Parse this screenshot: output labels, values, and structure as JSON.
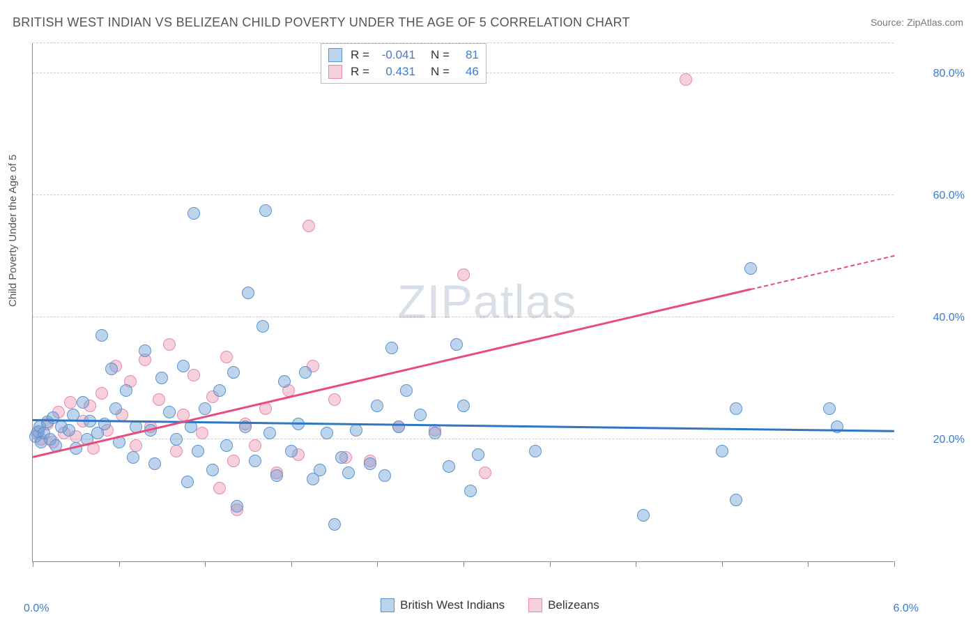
{
  "title": "BRITISH WEST INDIAN VS BELIZEAN CHILD POVERTY UNDER THE AGE OF 5 CORRELATION CHART",
  "source_label": "Source:",
  "source_name": "ZipAtlas.com",
  "ylabel": "Child Poverty Under the Age of 5",
  "watermark_a": "ZIP",
  "watermark_b": "atlas",
  "chart": {
    "type": "scatter",
    "xlim": [
      0.0,
      6.0
    ],
    "ylim": [
      0.0,
      85.0
    ],
    "x_ticks": [
      0.0,
      0.6,
      1.2,
      1.8,
      2.4,
      3.0,
      3.6,
      4.2,
      4.8,
      5.4,
      6.0
    ],
    "x_tick_labels": {
      "0": "0.0%",
      "10": "6.0%"
    },
    "y_gridlines": [
      20.0,
      40.0,
      60.0,
      80.0
    ],
    "y_tick_labels": [
      "20.0%",
      "40.0%",
      "60.0%",
      "80.0%"
    ],
    "marker_radius": 9,
    "marker_opacity": 0.55,
    "background_color": "#ffffff",
    "grid_color": "#cccccc",
    "axis_color": "#888888",
    "tick_label_color": "#3d7cc9"
  },
  "series": [
    {
      "name": "British West Indians",
      "color_fill": "rgba(110,160,215,0.45)",
      "color_stroke": "#5a94cd",
      "swatch_fill": "#bad4ee",
      "swatch_stroke": "#5a94cd",
      "R": "-0.041",
      "N": "81",
      "trend": {
        "x1": 0.0,
        "y1": 23.0,
        "x2": 6.0,
        "y2": 21.2,
        "color": "#2f77c4",
        "width": 2.8
      },
      "points": [
        [
          0.02,
          20.5
        ],
        [
          0.04,
          21.2
        ],
        [
          0.05,
          22.0
        ],
        [
          0.06,
          19.5
        ],
        [
          0.08,
          21.0
        ],
        [
          0.1,
          22.8
        ],
        [
          0.12,
          20.0
        ],
        [
          0.14,
          23.5
        ],
        [
          0.16,
          19.0
        ],
        [
          0.2,
          22.0
        ],
        [
          0.25,
          21.5
        ],
        [
          0.28,
          24.0
        ],
        [
          0.3,
          18.5
        ],
        [
          0.35,
          26.0
        ],
        [
          0.38,
          20.0
        ],
        [
          0.4,
          23.0
        ],
        [
          0.45,
          21.0
        ],
        [
          0.48,
          37.0
        ],
        [
          0.5,
          22.5
        ],
        [
          0.55,
          31.5
        ],
        [
          0.58,
          25.0
        ],
        [
          0.6,
          19.5
        ],
        [
          0.65,
          28.0
        ],
        [
          0.7,
          17.0
        ],
        [
          0.72,
          22.0
        ],
        [
          0.78,
          34.5
        ],
        [
          0.82,
          21.5
        ],
        [
          0.85,
          16.0
        ],
        [
          0.9,
          30.0
        ],
        [
          0.95,
          24.5
        ],
        [
          1.0,
          20.0
        ],
        [
          1.05,
          32.0
        ],
        [
          1.08,
          13.0
        ],
        [
          1.1,
          22.0
        ],
        [
          1.12,
          57.0
        ],
        [
          1.15,
          18.0
        ],
        [
          1.2,
          25.0
        ],
        [
          1.25,
          15.0
        ],
        [
          1.3,
          28.0
        ],
        [
          1.35,
          19.0
        ],
        [
          1.4,
          31.0
        ],
        [
          1.42,
          9.0
        ],
        [
          1.48,
          22.0
        ],
        [
          1.5,
          44.0
        ],
        [
          1.55,
          16.5
        ],
        [
          1.6,
          38.5
        ],
        [
          1.62,
          57.5
        ],
        [
          1.65,
          21.0
        ],
        [
          1.7,
          14.0
        ],
        [
          1.75,
          29.5
        ],
        [
          1.8,
          18.0
        ],
        [
          1.85,
          22.5
        ],
        [
          1.9,
          31.0
        ],
        [
          1.95,
          13.5
        ],
        [
          2.0,
          15.0
        ],
        [
          2.05,
          21.0
        ],
        [
          2.1,
          6.0
        ],
        [
          2.15,
          17.0
        ],
        [
          2.2,
          14.5
        ],
        [
          2.25,
          21.5
        ],
        [
          2.35,
          16.0
        ],
        [
          2.4,
          25.5
        ],
        [
          2.45,
          14.0
        ],
        [
          2.5,
          35.0
        ],
        [
          2.55,
          22.0
        ],
        [
          2.6,
          28.0
        ],
        [
          2.7,
          24.0
        ],
        [
          2.8,
          21.0
        ],
        [
          2.9,
          15.5
        ],
        [
          2.95,
          35.5
        ],
        [
          3.0,
          25.5
        ],
        [
          3.05,
          11.5
        ],
        [
          3.1,
          17.5
        ],
        [
          3.5,
          18.0
        ],
        [
          4.25,
          7.5
        ],
        [
          4.9,
          10.0
        ],
        [
          4.8,
          18.0
        ],
        [
          4.9,
          25.0
        ],
        [
          5.0,
          48.0
        ],
        [
          5.55,
          25.0
        ],
        [
          5.6,
          22.0
        ]
      ]
    },
    {
      "name": "Belizeans",
      "color_fill": "rgba(235,150,175,0.45)",
      "color_stroke": "#e68aad",
      "swatch_fill": "#f5cfda",
      "swatch_stroke": "#e68aad",
      "R": "0.431",
      "N": "46",
      "trend": {
        "x1": 0.0,
        "y1": 17.0,
        "x2": 5.0,
        "y2": 44.5,
        "color": "#e84c7f",
        "width": 2.5,
        "dash_x2": 6.0,
        "dash_y2": 50.0
      },
      "points": [
        [
          0.03,
          21.0
        ],
        [
          0.06,
          20.0
        ],
        [
          0.1,
          22.5
        ],
        [
          0.14,
          19.5
        ],
        [
          0.18,
          24.5
        ],
        [
          0.22,
          21.0
        ],
        [
          0.26,
          26.0
        ],
        [
          0.3,
          20.5
        ],
        [
          0.35,
          23.0
        ],
        [
          0.4,
          25.5
        ],
        [
          0.42,
          18.5
        ],
        [
          0.48,
          27.5
        ],
        [
          0.52,
          21.5
        ],
        [
          0.58,
          32.0
        ],
        [
          0.62,
          24.0
        ],
        [
          0.68,
          29.5
        ],
        [
          0.72,
          19.0
        ],
        [
          0.78,
          33.0
        ],
        [
          0.82,
          22.0
        ],
        [
          0.88,
          26.5
        ],
        [
          0.95,
          35.5
        ],
        [
          1.0,
          18.0
        ],
        [
          1.05,
          24.0
        ],
        [
          1.12,
          30.5
        ],
        [
          1.18,
          21.0
        ],
        [
          1.25,
          27.0
        ],
        [
          1.3,
          12.0
        ],
        [
          1.35,
          33.5
        ],
        [
          1.4,
          16.5
        ],
        [
          1.42,
          8.5
        ],
        [
          1.48,
          22.5
        ],
        [
          1.55,
          19.0
        ],
        [
          1.62,
          25.0
        ],
        [
          1.7,
          14.5
        ],
        [
          1.78,
          28.0
        ],
        [
          1.85,
          17.5
        ],
        [
          1.92,
          55.0
        ],
        [
          1.95,
          32.0
        ],
        [
          2.1,
          26.5
        ],
        [
          2.18,
          17.0
        ],
        [
          2.35,
          16.5
        ],
        [
          2.55,
          22.0
        ],
        [
          2.8,
          21.5
        ],
        [
          3.0,
          47.0
        ],
        [
          3.15,
          14.5
        ],
        [
          4.55,
          79.0
        ]
      ]
    }
  ],
  "legend": {
    "items": [
      "British West Indians",
      "Belizeans"
    ]
  }
}
